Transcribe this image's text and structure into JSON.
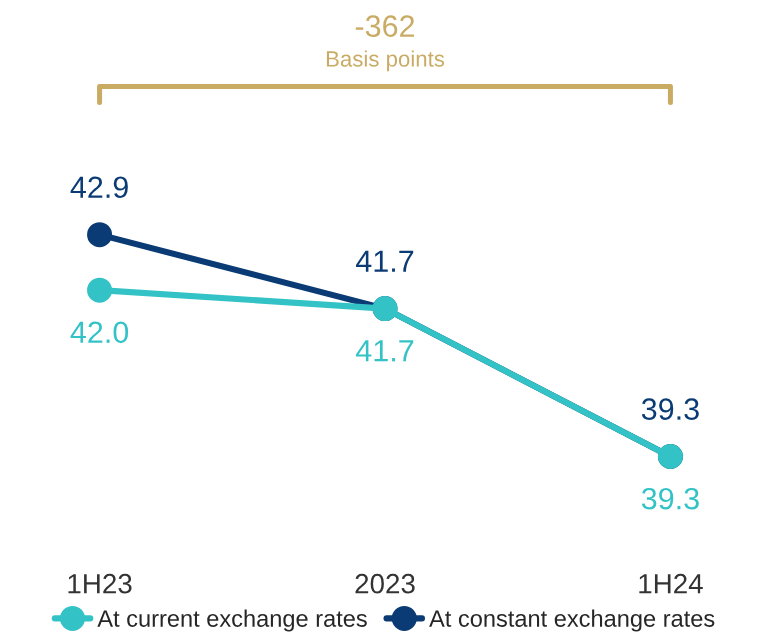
{
  "chart_data": {
    "type": "line",
    "categories": [
      "1H23",
      "2023",
      "1H24"
    ],
    "series": [
      {
        "name": "At current exchange rates",
        "color": "#33c3c6",
        "values": [
          42.0,
          41.7,
          39.3
        ],
        "value_labels": [
          "42.0",
          "41.7",
          "39.3"
        ]
      },
      {
        "name": "At constant exchange rates",
        "color": "#0b3b74",
        "values": [
          42.9,
          41.7,
          39.3
        ],
        "value_labels": [
          "42.9",
          "41.7",
          "39.3"
        ]
      }
    ],
    "marker": "circle",
    "legend": "bottom",
    "grid": false,
    "tick_labels": "x",
    "annotations": [
      "-362",
      "Basis points"
    ]
  }
}
